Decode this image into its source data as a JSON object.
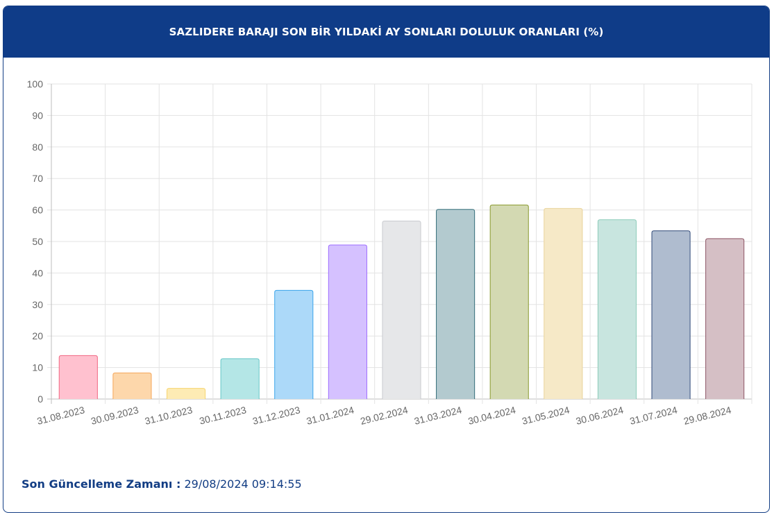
{
  "header": {
    "title": "SAZLIDERE BARAJI SON BİR YILDAKİ AY SONLARI DOLULUK ORANLARI (%)"
  },
  "footer": {
    "label": "Son Güncelleme Zamanı :",
    "value": "29/08/2024 09:14:55"
  },
  "chart_data": {
    "type": "bar",
    "title": "SAZLIDERE BARAJI SON BİR YILDAKİ AY SONLARI DOLULUK ORANLARI (%)",
    "xlabel": "",
    "ylabel": "",
    "ylim": [
      0,
      100
    ],
    "yticks": [
      0,
      10,
      20,
      30,
      40,
      50,
      60,
      70,
      80,
      90,
      100
    ],
    "grid": true,
    "categories": [
      "31.08.2023",
      "30.09.2023",
      "31.10.2023",
      "30.11.2023",
      "31.12.2023",
      "31.01.2024",
      "29.02.2024",
      "31.03.2024",
      "30.04.2024",
      "31.05.2024",
      "30.06.2024",
      "31.07.2024",
      "29.08.2024"
    ],
    "values": [
      13.8,
      8.3,
      3.4,
      12.8,
      34.5,
      48.9,
      56.5,
      60.2,
      61.6,
      60.5,
      56.9,
      53.4,
      50.9
    ],
    "fills": [
      "#ffc1cf",
      "#fdd7ab",
      "#fdebb4",
      "#b4e6e6",
      "#acd9f9",
      "#d5c1ff",
      "#e6e7e9",
      "#b3cacf",
      "#d3d9b2",
      "#f6e9c7",
      "#c8e5df",
      "#afbccf",
      "#d5bfc5"
    ],
    "strokes": [
      "#f06782",
      "#f5a65a",
      "#f6d46d",
      "#67c8c8",
      "#3aa4ea",
      "#9c6cff",
      "#c9cbcf",
      "#336d79",
      "#8a9a2f",
      "#e9d39a",
      "#8ccbb9",
      "#324b7a",
      "#8d5564"
    ]
  }
}
